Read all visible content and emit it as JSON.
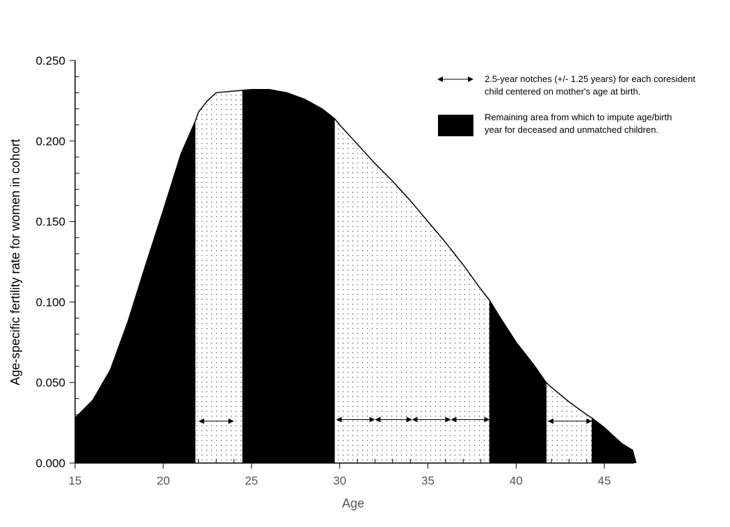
{
  "chart_data": {
    "type": "area",
    "xlabel": "Age",
    "ylabel": "Age-specific fertility rate for women in cohort",
    "xlim": [
      15,
      47
    ],
    "ylim": [
      0,
      0.25
    ],
    "x_ticks": [
      "15",
      "20",
      "25",
      "30",
      "35",
      "40",
      "45"
    ],
    "y_ticks": [
      "0.000",
      "0.050",
      "0.100",
      "0.150",
      "0.200",
      "0.250"
    ],
    "curve": {
      "x": [
        15,
        16,
        17,
        18,
        19,
        20,
        21,
        21.8,
        22,
        22.5,
        23,
        24,
        25,
        26,
        27,
        28,
        29,
        29.7,
        30,
        31,
        32,
        33,
        34,
        35,
        36,
        37,
        38,
        38.5,
        39,
        40,
        41,
        41.7,
        42,
        43,
        44,
        44.3,
        45,
        46,
        46.6,
        46.8
      ],
      "y": [
        0.028,
        0.039,
        0.058,
        0.088,
        0.123,
        0.157,
        0.192,
        0.212,
        0.218,
        0.225,
        0.23,
        0.231,
        0.232,
        0.232,
        0.23,
        0.226,
        0.22,
        0.214,
        0.21,
        0.198,
        0.186,
        0.175,
        0.163,
        0.15,
        0.137,
        0.123,
        0.108,
        0.101,
        0.092,
        0.075,
        0.061,
        0.05,
        0.047,
        0.038,
        0.03,
        0.028,
        0.022,
        0.012,
        0.008,
        0.0
      ]
    },
    "segments": [
      {
        "from": 15,
        "to": 21.8,
        "fill": "solid"
      },
      {
        "from": 21.8,
        "to": 24.5,
        "fill": "dotted"
      },
      {
        "from": 24.5,
        "to": 29.7,
        "fill": "solid"
      },
      {
        "from": 29.7,
        "to": 38.5,
        "fill": "dotted"
      },
      {
        "from": 38.5,
        "to": 41.7,
        "fill": "solid"
      },
      {
        "from": 41.7,
        "to": 44.3,
        "fill": "dotted"
      },
      {
        "from": 44.3,
        "to": 46.8,
        "fill": "solid"
      }
    ],
    "notches": [
      {
        "from": 22,
        "to": 24,
        "y": 0.026
      },
      {
        "from": 29.8,
        "to": 32,
        "y": 0.027
      },
      {
        "from": 32,
        "to": 34.1,
        "y": 0.027
      },
      {
        "from": 34.1,
        "to": 36.3,
        "y": 0.027
      },
      {
        "from": 36.3,
        "to": 38.5,
        "y": 0.027
      },
      {
        "from": 41.8,
        "to": 44.3,
        "y": 0.026
      }
    ],
    "legend": {
      "placement": "top-right",
      "items": [
        {
          "kind": "arrow",
          "lines": [
            "2.5-year notches (+/- 1.25 years) for each coresident",
            "child centered on mother's age at birth."
          ]
        },
        {
          "kind": "solid",
          "lines": [
            "Remaining area from which to impute age/birth",
            "year for deceased and unmatched children."
          ]
        }
      ]
    },
    "colors": {
      "fill": "#000000",
      "dots": "#555555",
      "x_axis_text": "#555555"
    }
  }
}
